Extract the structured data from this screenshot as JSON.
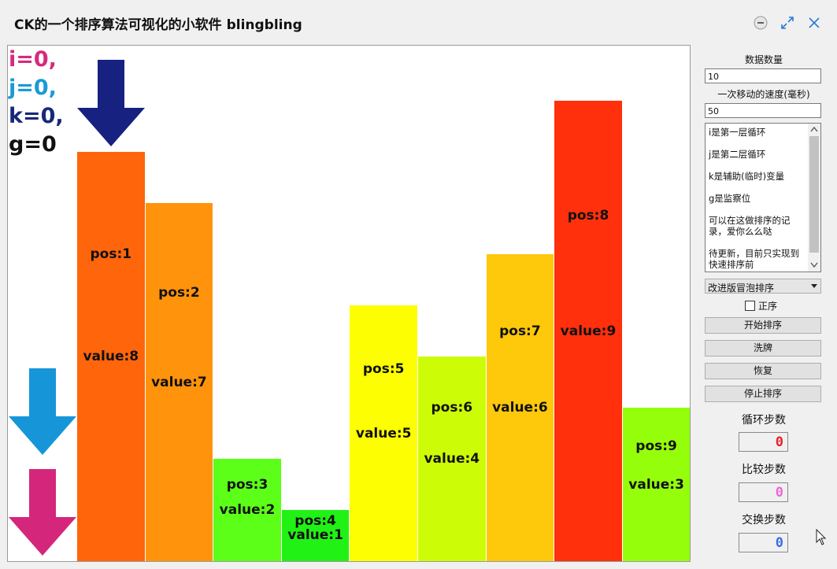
{
  "window": {
    "title": "CK的一个排序算法可视化的小软件 blingbling",
    "controls": [
      "minimize-icon",
      "maximize-icon",
      "close-icon"
    ]
  },
  "canvas": {
    "variables": [
      {
        "text": "i=0,",
        "color": "#d42a7e"
      },
      {
        "text": "j=0,",
        "color": "#1a9ad6"
      },
      {
        "text": "k=0,",
        "color": "#18287a"
      },
      {
        "text": "g=0",
        "color": "#111111"
      }
    ],
    "arrows": [
      {
        "name": "k-pointer-arrow-icon",
        "color": "#172180"
      },
      {
        "name": "j-pointer-arrow-icon",
        "color": "#1696d8"
      },
      {
        "name": "i-pointer-arrow-icon",
        "color": "#d4277b"
      }
    ],
    "bars": [
      {
        "pos": "pos:1",
        "value": "value:8",
        "v": 8,
        "color": "#ff650b"
      },
      {
        "pos": "pos:2",
        "value": "value:7",
        "v": 7,
        "color": "#ff930b"
      },
      {
        "pos": "pos:3",
        "value": "value:2",
        "v": 2,
        "color": "#5cff17"
      },
      {
        "pos": "pos:4",
        "value": "value:1",
        "v": 1,
        "color": "#22f116"
      },
      {
        "pos": "pos:5",
        "value": "value:5",
        "v": 5,
        "color": "#fefe02"
      },
      {
        "pos": "pos:6",
        "value": "value:4",
        "v": 4,
        "color": "#cdfc07"
      },
      {
        "pos": "pos:7",
        "value": "value:6",
        "v": 6,
        "color": "#fec80b"
      },
      {
        "pos": "pos:8",
        "value": "value:9",
        "v": 9,
        "color": "#ff300b"
      },
      {
        "pos": "pos:9",
        "value": "value:3",
        "v": 3,
        "color": "#95ff0b"
      }
    ]
  },
  "panel": {
    "data_count_label": "数据数量",
    "data_count_value": "10",
    "speed_label": "一次移动的速度(毫秒)",
    "speed_value": "50",
    "notes": [
      "i是第一层循环",
      "j是第二层循环",
      "k是辅助(临时)变量",
      "g是监察位",
      "可以在这做排序的记录，爱你么么哒",
      "待更新，目前只实现到快速排序前"
    ],
    "algorithm_selected": "改进版冒泡排序",
    "ascending_label": "正序",
    "ascending_checked": false,
    "start_button": "开始排序",
    "shuffle_button": "洗牌",
    "restore_button": "恢复",
    "stop_button": "停止排序",
    "loop_steps_label": "循环步数",
    "loop_steps_value": "0",
    "loop_steps_color": "#e8202a",
    "compare_steps_label": "比较步数",
    "compare_steps_value": "0",
    "compare_steps_color": "#e86ad6",
    "swap_steps_label": "交换步数",
    "swap_steps_value": "0",
    "swap_steps_color": "#3a6ee0"
  }
}
